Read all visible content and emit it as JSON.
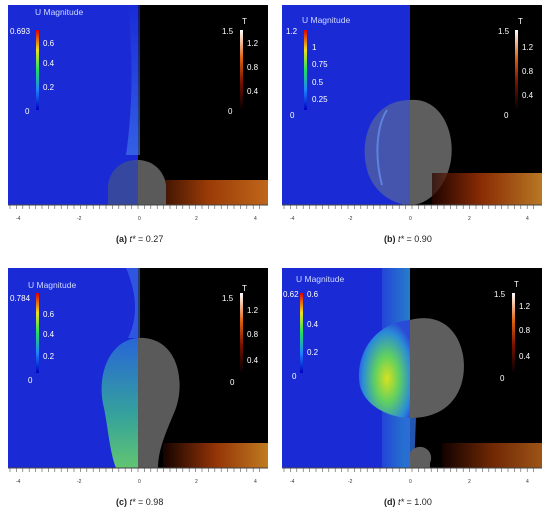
{
  "panels": [
    {
      "id": "a",
      "caption_label": "(a)",
      "caption_var": "t*",
      "caption_value": "= 0.27",
      "u_title": "U Magnitude",
      "u_ticks": [
        "0.693",
        "0.6",
        "0.4",
        "0.2",
        "0"
      ],
      "t_title": "T",
      "t_ticks": [
        "1.5",
        "1.2",
        "0.8",
        "0.4",
        "0"
      ],
      "axis_ticks": [
        "-4",
        "-2",
        "0",
        "2",
        "4"
      ]
    },
    {
      "id": "b",
      "caption_label": "(b)",
      "caption_var": "t*",
      "caption_value": "= 0.90",
      "u_title": "U Magnitude",
      "u_ticks": [
        "1.2",
        "1",
        "0.75",
        "0.5",
        "0.25",
        "0"
      ],
      "t_title": "T",
      "t_ticks": [
        "1.5",
        "1.2",
        "0.8",
        "0.4",
        "0"
      ],
      "axis_ticks": [
        "-4",
        "-2",
        "0",
        "2",
        "4"
      ]
    },
    {
      "id": "c",
      "caption_label": "(c)",
      "caption_var": "t*",
      "caption_value": "= 0.98",
      "u_title": "U Magnitude",
      "u_ticks": [
        "0.784",
        "0.6",
        "0.4",
        "0.2",
        "0"
      ],
      "t_title": "T",
      "t_ticks": [
        "1.5",
        "1.2",
        "0.8",
        "0.4",
        "0"
      ],
      "axis_ticks": [
        "-4",
        "-2",
        "0",
        "2",
        "4"
      ]
    },
    {
      "id": "d",
      "caption_label": "(d)",
      "caption_var": "t*",
      "caption_value": "= 1.00",
      "u_title": "U Magnitude",
      "u_ticks": [
        "0.62",
        "0.6",
        "0.4",
        "0.2",
        "0"
      ],
      "t_title": "T",
      "t_ticks": [
        "1.5",
        "1.2",
        "0.8",
        "0.4",
        "0"
      ],
      "axis_ticks": [
        "-4",
        "-2",
        "0",
        "2",
        "4"
      ]
    }
  ],
  "colors": {
    "u_background": "#1a2bd6",
    "t_background": "#000000",
    "bubble_gray": "#6e6e6e",
    "hot_orange": "#e86a10"
  }
}
